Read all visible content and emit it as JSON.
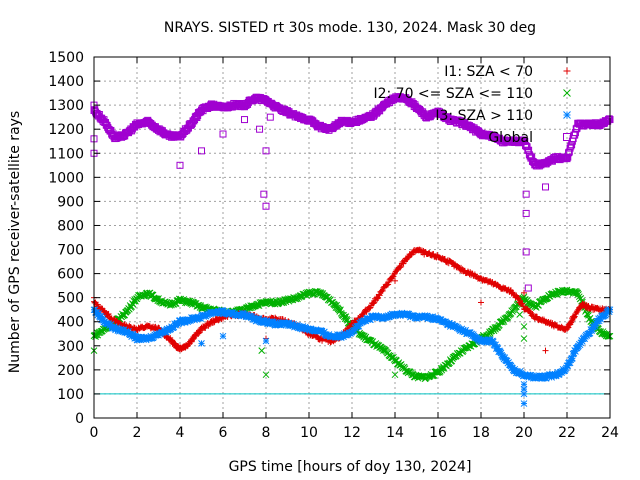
{
  "chart_data": {
    "type": "scatter",
    "title": "NRAYS. SISTED rt 30s mode. 130, 2024. Mask 30 deg",
    "xlabel": "GPS time [hours of doy 130, 2024]",
    "ylabel": "Number of GPS receiver-satellite rays",
    "xlim": [
      0,
      24
    ],
    "ylim": [
      0,
      1500
    ],
    "xticks": [
      "0",
      "2",
      "4",
      "6",
      "8",
      "10",
      "12",
      "14",
      "16",
      "18",
      "20",
      "22",
      "24"
    ],
    "yticks": [
      "0",
      "100",
      "200",
      "300",
      "400",
      "500",
      "600",
      "700",
      "800",
      "900",
      "1000",
      "1100",
      "1200",
      "1300",
      "1400",
      "1500"
    ],
    "grid": true,
    "legend_position": "top-right",
    "reference_line": {
      "y": 100,
      "color": "#00c0c0"
    },
    "series": [
      {
        "name": "I1: SZA < 70",
        "marker": "+",
        "color": "#e00000",
        "points": [
          [
            0,
            480
          ],
          [
            0.5,
            440
          ],
          [
            1,
            400
          ],
          [
            1.5,
            380
          ],
          [
            2,
            370
          ],
          [
            2.5,
            380
          ],
          [
            3,
            370
          ],
          [
            3.5,
            330
          ],
          [
            3.8,
            300
          ],
          [
            4,
            290
          ],
          [
            4.3,
            300
          ],
          [
            4.6,
            330
          ],
          [
            5,
            370
          ],
          [
            5.5,
            400
          ],
          [
            6,
            420
          ],
          [
            6.5,
            430
          ],
          [
            7,
            430
          ],
          [
            7.5,
            420
          ],
          [
            8,
            410
          ],
          [
            8.5,
            410
          ],
          [
            9,
            400
          ],
          [
            9.5,
            380
          ],
          [
            10,
            350
          ],
          [
            10.5,
            330
          ],
          [
            11,
            320
          ],
          [
            11.5,
            340
          ],
          [
            12,
            390
          ],
          [
            12.5,
            430
          ],
          [
            13,
            480
          ],
          [
            13.5,
            540
          ],
          [
            14,
            600
          ],
          [
            14.5,
            660
          ],
          [
            15,
            700
          ],
          [
            15.5,
            680
          ],
          [
            16,
            670
          ],
          [
            16.5,
            650
          ],
          [
            17,
            620
          ],
          [
            17.5,
            600
          ],
          [
            18,
            580
          ],
          [
            18.5,
            560
          ],
          [
            19,
            540
          ],
          [
            19.5,
            520
          ],
          [
            20,
            460
          ],
          [
            20.5,
            420
          ],
          [
            21,
            400
          ],
          [
            21.5,
            380
          ],
          [
            22,
            370
          ],
          [
            22.3,
            420
          ],
          [
            22.7,
            470
          ],
          [
            23,
            460
          ],
          [
            23.5,
            450
          ],
          [
            24,
            450
          ]
        ]
      },
      {
        "name": "I2: 70 <= SZA <= 110",
        "marker": "x",
        "color": "#00b000",
        "points": [
          [
            0,
            340
          ],
          [
            0.5,
            370
          ],
          [
            1,
            400
          ],
          [
            1.5,
            440
          ],
          [
            2,
            500
          ],
          [
            2.5,
            520
          ],
          [
            3,
            490
          ],
          [
            3.5,
            470
          ],
          [
            4,
            490
          ],
          [
            4.5,
            480
          ],
          [
            5,
            460
          ],
          [
            5.5,
            450
          ],
          [
            6,
            440
          ],
          [
            6.5,
            440
          ],
          [
            7,
            450
          ],
          [
            7.5,
            470
          ],
          [
            8,
            480
          ],
          [
            8.5,
            480
          ],
          [
            9,
            490
          ],
          [
            9.5,
            500
          ],
          [
            10,
            520
          ],
          [
            10.5,
            520
          ],
          [
            11,
            490
          ],
          [
            11.5,
            440
          ],
          [
            12,
            380
          ],
          [
            12.5,
            340
          ],
          [
            13,
            310
          ],
          [
            13.5,
            280
          ],
          [
            14,
            240
          ],
          [
            14.5,
            200
          ],
          [
            15,
            170
          ],
          [
            15.5,
            170
          ],
          [
            16,
            190
          ],
          [
            16.5,
            230
          ],
          [
            17,
            270
          ],
          [
            17.5,
            300
          ],
          [
            18,
            330
          ],
          [
            18.5,
            360
          ],
          [
            19,
            400
          ],
          [
            19.5,
            450
          ],
          [
            20,
            500
          ],
          [
            20.5,
            460
          ],
          [
            21,
            500
          ],
          [
            21.5,
            520
          ],
          [
            22,
            530
          ],
          [
            22.5,
            520
          ],
          [
            23,
            420
          ],
          [
            23.5,
            360
          ],
          [
            24,
            340
          ]
        ]
      },
      {
        "name": "I3: SZA > 110",
        "marker": "*",
        "color": "#0080ff",
        "points": [
          [
            0,
            450
          ],
          [
            0.5,
            400
          ],
          [
            1,
            370
          ],
          [
            1.5,
            360
          ],
          [
            2,
            330
          ],
          [
            2.5,
            330
          ],
          [
            3,
            350
          ],
          [
            3.5,
            370
          ],
          [
            4,
            400
          ],
          [
            4.5,
            410
          ],
          [
            5,
            420
          ],
          [
            5.5,
            440
          ],
          [
            6,
            440
          ],
          [
            6.5,
            430
          ],
          [
            7,
            430
          ],
          [
            7.5,
            410
          ],
          [
            8,
            400
          ],
          [
            8.5,
            390
          ],
          [
            9,
            390
          ],
          [
            9.5,
            380
          ],
          [
            10,
            370
          ],
          [
            10.5,
            360
          ],
          [
            11,
            340
          ],
          [
            11.5,
            340
          ],
          [
            12,
            360
          ],
          [
            12.5,
            400
          ],
          [
            13,
            420
          ],
          [
            13.5,
            420
          ],
          [
            14,
            430
          ],
          [
            14.5,
            430
          ],
          [
            15,
            420
          ],
          [
            15.5,
            420
          ],
          [
            16,
            410
          ],
          [
            16.5,
            390
          ],
          [
            17,
            370
          ],
          [
            17.5,
            350
          ],
          [
            18,
            320
          ],
          [
            18.5,
            320
          ],
          [
            19,
            260
          ],
          [
            19.5,
            200
          ],
          [
            20,
            180
          ],
          [
            20.5,
            170
          ],
          [
            21,
            170
          ],
          [
            21.5,
            180
          ],
          [
            22,
            210
          ],
          [
            22.5,
            300
          ],
          [
            23,
            350
          ],
          [
            23.5,
            410
          ],
          [
            24,
            450
          ]
        ]
      },
      {
        "name": "Global",
        "marker": "square",
        "color": "#a000d0",
        "points": [
          [
            0,
            1280
          ],
          [
            0.5,
            1230
          ],
          [
            1,
            1160
          ],
          [
            1.5,
            1180
          ],
          [
            2,
            1220
          ],
          [
            2.5,
            1230
          ],
          [
            3,
            1200
          ],
          [
            3.5,
            1170
          ],
          [
            4,
            1170
          ],
          [
            4.5,
            1220
          ],
          [
            5,
            1280
          ],
          [
            5.5,
            1300
          ],
          [
            6,
            1290
          ],
          [
            6.5,
            1300
          ],
          [
            7,
            1300
          ],
          [
            7.5,
            1330
          ],
          [
            8,
            1320
          ],
          [
            8.5,
            1290
          ],
          [
            9,
            1270
          ],
          [
            9.5,
            1250
          ],
          [
            10,
            1240
          ],
          [
            10.5,
            1210
          ],
          [
            11,
            1200
          ],
          [
            11.5,
            1230
          ],
          [
            12,
            1230
          ],
          [
            12.5,
            1240
          ],
          [
            13,
            1260
          ],
          [
            13.5,
            1300
          ],
          [
            14,
            1330
          ],
          [
            14.5,
            1330
          ],
          [
            15,
            1290
          ],
          [
            15.5,
            1250
          ],
          [
            16,
            1270
          ],
          [
            16.5,
            1240
          ],
          [
            17,
            1230
          ],
          [
            17.5,
            1210
          ],
          [
            18,
            1180
          ],
          [
            18.5,
            1170
          ],
          [
            19,
            1150
          ],
          [
            19.5,
            1150
          ],
          [
            20,
            1150
          ],
          [
            20.5,
            1050
          ],
          [
            21,
            1060
          ],
          [
            21.5,
            1080
          ],
          [
            22,
            1080
          ],
          [
            22.5,
            1220
          ],
          [
            23,
            1220
          ],
          [
            23.5,
            1220
          ],
          [
            24,
            1240
          ]
        ]
      }
    ],
    "outliers": {
      "Global": [
        [
          0,
          1300
        ],
        [
          0,
          1160
        ],
        [
          0,
          1100
        ],
        [
          4,
          1050
        ],
        [
          5,
          1110
        ],
        [
          6,
          1180
        ],
        [
          7,
          1240
        ],
        [
          7.7,
          1200
        ],
        [
          7.9,
          930
        ],
        [
          8,
          880
        ],
        [
          8,
          1110
        ],
        [
          8.2,
          1250
        ],
        [
          20.1,
          930
        ],
        [
          20.1,
          850
        ],
        [
          20.1,
          690
        ],
        [
          20.2,
          540
        ],
        [
          21,
          960
        ]
      ],
      "I1: SZA < 70": [
        [
          0,
          500
        ],
        [
          8,
          330
        ],
        [
          14,
          570
        ],
        [
          18,
          480
        ],
        [
          20,
          520
        ],
        [
          21,
          280
        ]
      ],
      "I2: 70 <= SZA <= 110": [
        [
          0,
          280
        ],
        [
          7.8,
          280
        ],
        [
          8,
          180
        ],
        [
          14,
          180
        ],
        [
          20,
          330
        ],
        [
          20,
          380
        ],
        [
          19.8,
          430
        ]
      ],
      "I3: SZA > 110": [
        [
          5,
          310
        ],
        [
          6,
          340
        ],
        [
          8,
          320
        ],
        [
          20,
          140
        ],
        [
          20,
          60
        ],
        [
          20,
          100
        ],
        [
          20,
          120
        ]
      ]
    }
  }
}
